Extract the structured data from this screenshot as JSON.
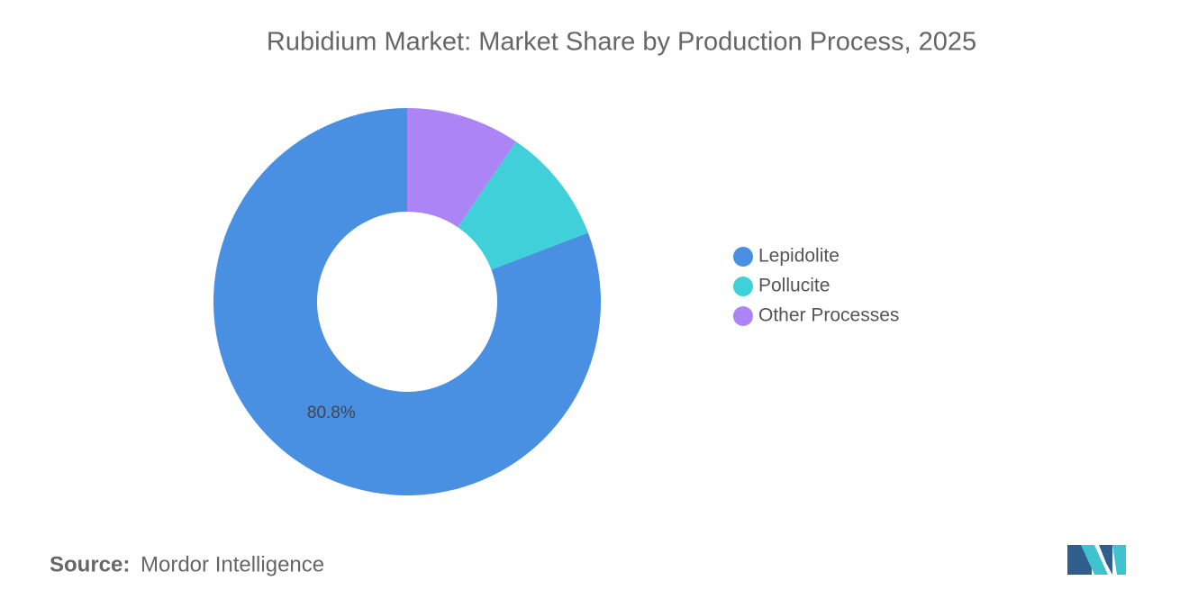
{
  "chart_data": {
    "type": "donut",
    "title": "Rubidium Market: Market Share by Production Process, 2025",
    "categories": [
      "Lepidolite",
      "Pollucite",
      "Other Processes"
    ],
    "values": [
      80.8,
      9.7,
      9.5
    ],
    "value_labels": [
      "80.8%",
      null,
      null
    ],
    "colors": [
      "#4a90e2",
      "#3fd0d9",
      "#ad84f5"
    ],
    "legend": "right"
  },
  "footer": {
    "source_label": "Source:",
    "source": "Mordor Intelligence"
  }
}
